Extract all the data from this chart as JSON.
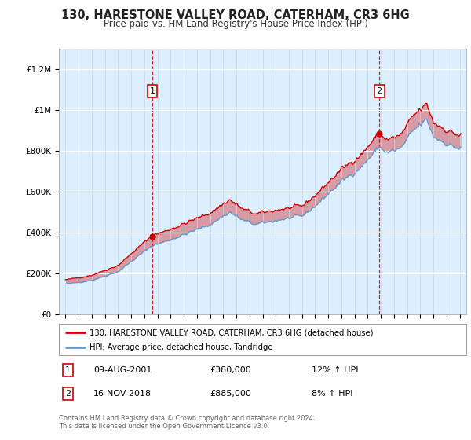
{
  "title": "130, HARESTONE VALLEY ROAD, CATERHAM, CR3 6HG",
  "subtitle": "Price paid vs. HM Land Registry's House Price Index (HPI)",
  "legend_line1": "130, HARESTONE VALLEY ROAD, CATERHAM, CR3 6HG (detached house)",
  "legend_line2": "HPI: Average price, detached house, Tandridge",
  "annotation1_label": "1",
  "annotation1_date": "09-AUG-2001",
  "annotation1_price": "£380,000",
  "annotation1_hpi": "12% ↑ HPI",
  "annotation2_label": "2",
  "annotation2_date": "16-NOV-2018",
  "annotation2_price": "£885,000",
  "annotation2_hpi": "8% ↑ HPI",
  "footnote": "Contains HM Land Registry data © Crown copyright and database right 2024.\nThis data is licensed under the Open Government Licence v3.0.",
  "sale1_year": 2001.6,
  "sale1_price": 380000,
  "sale2_year": 2018.88,
  "sale2_price": 885000,
  "red_color": "#cc0000",
  "blue_color": "#6699cc",
  "fill_red": "#cc0000",
  "fill_blue": "#aabbdd",
  "background_color": "#ddeeff",
  "plot_bg_color": "#ffffff",
  "ylim_min": 0,
  "ylim_max": 1300000,
  "xlim_min": 1994.5,
  "xlim_max": 2025.5
}
